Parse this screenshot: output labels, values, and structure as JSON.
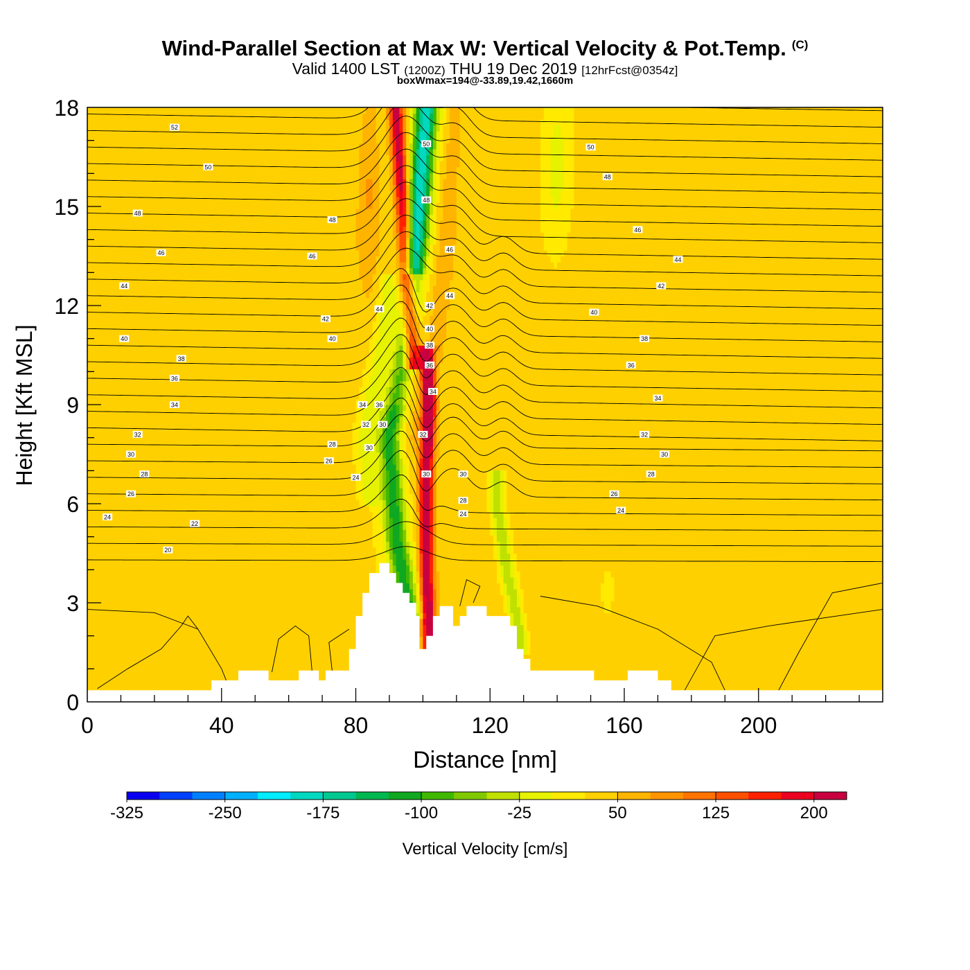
{
  "header": {
    "title": "Wind-Parallel Section at Max W: Vertical Velocity & Pot.Temp.",
    "copyright": "(C)",
    "valid_main": "Valid 1400 LST",
    "valid_utc": "(1200Z)",
    "valid_date": "THU 19 Dec 2019",
    "forecast": "[12hrFcst@0354z]",
    "subtitle": "boxWmax=194@-33.89,19.42,1660m"
  },
  "chart_data": {
    "type": "heatmap",
    "xlabel": "Distance [nm]",
    "ylabel": "Height [Kft MSL]",
    "xlim": [
      0,
      237
    ],
    "ylim": [
      0,
      18
    ],
    "x_ticks": [
      0,
      40,
      80,
      120,
      160,
      200
    ],
    "y_ticks": [
      0,
      3,
      6,
      9,
      12,
      15,
      18
    ],
    "colorbar": {
      "label": "Vertical Velocity [cm/s]",
      "tick_labels": [
        "-325",
        "-250",
        "-175",
        "-100",
        "-25",
        "50",
        "125",
        "200"
      ],
      "colors": [
        "#0a00f0",
        "#0040ff",
        "#0080ff",
        "#00b0ff",
        "#00ecff",
        "#00d8c0",
        "#00c890",
        "#00b850",
        "#10a820",
        "#40b800",
        "#80c800",
        "#c0e000",
        "#e6f200",
        "#ffea00",
        "#ffd000",
        "#ffb400",
        "#ff9400",
        "#ff7400",
        "#ff5000",
        "#ff2000",
        "#ec0020",
        "#c80040"
      ]
    },
    "theta_labels": [
      {
        "x": 26,
        "y": 17.4,
        "t": "52"
      },
      {
        "x": 36,
        "y": 16.2,
        "t": "50"
      },
      {
        "x": 15,
        "y": 14.8,
        "t": "48"
      },
      {
        "x": 22,
        "y": 13.6,
        "t": "46"
      },
      {
        "x": 11,
        "y": 12.6,
        "t": "44"
      },
      {
        "x": 11,
        "y": 11.0,
        "t": "40"
      },
      {
        "x": 28,
        "y": 10.4,
        "t": "38"
      },
      {
        "x": 26,
        "y": 9.8,
        "t": "36"
      },
      {
        "x": 26,
        "y": 9.0,
        "t": "34"
      },
      {
        "x": 15,
        "y": 8.1,
        "t": "32"
      },
      {
        "x": 13,
        "y": 7.5,
        "t": "30"
      },
      {
        "x": 17,
        "y": 6.9,
        "t": "28"
      },
      {
        "x": 13,
        "y": 6.3,
        "t": "26"
      },
      {
        "x": 6,
        "y": 5.6,
        "t": "24"
      },
      {
        "x": 32,
        "y": 5.4,
        "t": "22"
      },
      {
        "x": 24,
        "y": 4.6,
        "t": "20"
      },
      {
        "x": 73,
        "y": 14.6,
        "t": "48"
      },
      {
        "x": 67,
        "y": 13.5,
        "t": "46"
      },
      {
        "x": 71,
        "y": 11.6,
        "t": "42"
      },
      {
        "x": 73,
        "y": 11.0,
        "t": "40"
      },
      {
        "x": 73,
        "y": 7.8,
        "t": "28"
      },
      {
        "x": 72,
        "y": 7.3,
        "t": "26"
      },
      {
        "x": 80,
        "y": 6.8,
        "t": "24"
      },
      {
        "x": 87,
        "y": 11.9,
        "t": "44"
      },
      {
        "x": 82,
        "y": 9.0,
        "t": "34"
      },
      {
        "x": 87,
        "y": 9.0,
        "t": "36"
      },
      {
        "x": 83,
        "y": 8.4,
        "t": "32"
      },
      {
        "x": 88,
        "y": 8.4,
        "t": "30"
      },
      {
        "x": 84,
        "y": 7.7,
        "t": "30"
      },
      {
        "x": 101,
        "y": 16.9,
        "t": "50"
      },
      {
        "x": 101,
        "y": 15.2,
        "t": "48"
      },
      {
        "x": 108,
        "y": 13.7,
        "t": "46"
      },
      {
        "x": 108,
        "y": 12.3,
        "t": "44"
      },
      {
        "x": 102,
        "y": 12.0,
        "t": "42"
      },
      {
        "x": 102,
        "y": 11.3,
        "t": "40"
      },
      {
        "x": 102,
        "y": 10.8,
        "t": "38"
      },
      {
        "x": 102,
        "y": 10.2,
        "t": "36"
      },
      {
        "x": 103,
        "y": 9.4,
        "t": "34"
      },
      {
        "x": 100,
        "y": 8.1,
        "t": "32"
      },
      {
        "x": 101,
        "y": 6.9,
        "t": "30"
      },
      {
        "x": 112,
        "y": 6.9,
        "t": "30"
      },
      {
        "x": 112,
        "y": 6.1,
        "t": "28"
      },
      {
        "x": 112,
        "y": 5.7,
        "t": "24"
      },
      {
        "x": 150,
        "y": 16.8,
        "t": "50"
      },
      {
        "x": 155,
        "y": 15.9,
        "t": "48"
      },
      {
        "x": 164,
        "y": 14.3,
        "t": "46"
      },
      {
        "x": 176,
        "y": 13.4,
        "t": "44"
      },
      {
        "x": 171,
        "y": 12.6,
        "t": "42"
      },
      {
        "x": 151,
        "y": 11.8,
        "t": "40"
      },
      {
        "x": 166,
        "y": 11.0,
        "t": "38"
      },
      {
        "x": 162,
        "y": 10.2,
        "t": "36"
      },
      {
        "x": 170,
        "y": 9.2,
        "t": "34"
      },
      {
        "x": 166,
        "y": 8.1,
        "t": "32"
      },
      {
        "x": 172,
        "y": 7.5,
        "t": "30"
      },
      {
        "x": 168,
        "y": 6.9,
        "t": "28"
      },
      {
        "x": 157,
        "y": 6.3,
        "t": "26"
      },
      {
        "x": 159,
        "y": 5.8,
        "t": "24"
      }
    ],
    "terrain_top": [
      [
        0,
        0.35
      ],
      [
        37,
        0.35
      ],
      [
        37,
        0.65
      ],
      [
        45,
        0.65
      ],
      [
        45,
        0.95
      ],
      [
        54,
        0.95
      ],
      [
        54,
        0.65
      ],
      [
        63,
        0.65
      ],
      [
        63,
        0.95
      ],
      [
        69,
        0.95
      ],
      [
        69,
        0.65
      ],
      [
        71,
        0.65
      ],
      [
        71,
        0.95
      ],
      [
        78,
        0.95
      ],
      [
        78,
        1.6
      ],
      [
        80,
        1.6
      ],
      [
        80,
        2.6
      ],
      [
        82,
        2.6
      ],
      [
        82,
        3.3
      ],
      [
        84,
        3.3
      ],
      [
        84,
        3.9
      ],
      [
        87,
        3.9
      ],
      [
        87,
        4.2
      ],
      [
        90,
        4.2
      ],
      [
        90,
        3.9
      ],
      [
        92,
        3.9
      ],
      [
        92,
        3.6
      ],
      [
        94,
        3.6
      ],
      [
        94,
        3.3
      ],
      [
        96,
        3.3
      ],
      [
        96,
        3.0
      ],
      [
        98,
        3.0
      ],
      [
        98,
        2.6
      ],
      [
        99,
        2.6
      ],
      [
        99,
        1.6
      ],
      [
        101,
        1.6
      ],
      [
        101,
        2.0
      ],
      [
        103,
        2.0
      ],
      [
        103,
        2.6
      ],
      [
        105,
        2.6
      ],
      [
        105,
        2.9
      ],
      [
        109,
        2.9
      ],
      [
        109,
        2.3
      ],
      [
        111,
        2.3
      ],
      [
        111,
        2.6
      ],
      [
        113,
        2.6
      ],
      [
        113,
        2.9
      ],
      [
        119,
        2.9
      ],
      [
        119,
        2.6
      ],
      [
        126,
        2.6
      ],
      [
        126,
        2.3
      ],
      [
        128,
        2.3
      ],
      [
        128,
        1.6
      ],
      [
        130,
        1.6
      ],
      [
        130,
        1.3
      ],
      [
        132,
        1.3
      ],
      [
        132,
        0.95
      ],
      [
        151,
        0.95
      ],
      [
        151,
        0.65
      ],
      [
        161,
        0.65
      ],
      [
        161,
        0.95
      ],
      [
        170,
        0.95
      ],
      [
        170,
        0.65
      ],
      [
        174,
        0.65
      ],
      [
        174,
        0.35
      ],
      [
        237,
        0.35
      ]
    ]
  }
}
